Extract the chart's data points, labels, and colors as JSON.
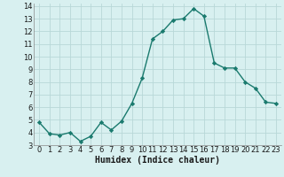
{
  "x": [
    0,
    1,
    2,
    3,
    4,
    5,
    6,
    7,
    8,
    9,
    10,
    11,
    12,
    13,
    14,
    15,
    16,
    17,
    18,
    19,
    20,
    21,
    22,
    23
  ],
  "y": [
    4.8,
    3.9,
    3.8,
    4.0,
    3.3,
    3.7,
    4.8,
    4.2,
    4.9,
    6.3,
    8.3,
    11.4,
    12.0,
    12.9,
    13.0,
    13.8,
    13.2,
    9.5,
    9.1,
    9.1,
    8.0,
    7.5,
    6.4,
    6.3
  ],
  "line_color": "#1a7a6e",
  "marker": "D",
  "markersize": 2.2,
  "linewidth": 1.0,
  "xlabel": "Humidex (Indice chaleur)",
  "xlim": [
    -0.5,
    23.5
  ],
  "ylim": [
    3,
    14.2
  ],
  "yticks": [
    3,
    4,
    5,
    6,
    7,
    8,
    9,
    10,
    11,
    12,
    13,
    14
  ],
  "xticks": [
    0,
    1,
    2,
    3,
    4,
    5,
    6,
    7,
    8,
    9,
    10,
    11,
    12,
    13,
    14,
    15,
    16,
    17,
    18,
    19,
    20,
    21,
    22,
    23
  ],
  "bg_color": "#d8f0f0",
  "grid_color": "#b8d8d8",
  "tick_fontsize": 6,
  "xlabel_fontsize": 7
}
